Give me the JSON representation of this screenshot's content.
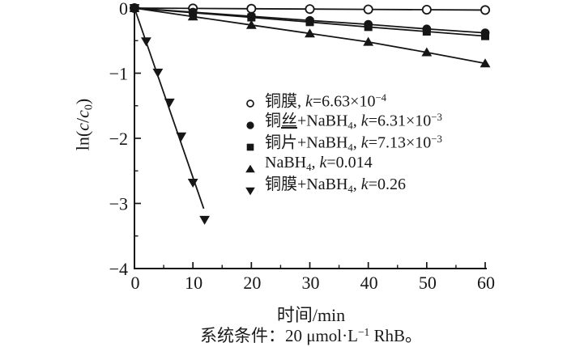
{
  "colors": {
    "ink": "#161616",
    "background": "#ffffff"
  },
  "caption": {
    "segments": [
      {
        "t": "系统条件：20 μmol·L"
      },
      {
        "t": "−1",
        "s": "sup"
      },
      {
        "t": " RhB。"
      }
    ]
  },
  "chart_data": {
    "type": "line",
    "title": "",
    "xlabel": "时间/min",
    "ylabel": "ln(c/c0)",
    "ylabel_segments": [
      {
        "t": "ln("
      },
      {
        "t": "c",
        "s": "i"
      },
      {
        "t": "/"
      },
      {
        "t": "c",
        "s": "i"
      },
      {
        "t": "0",
        "s": "sub"
      },
      {
        "t": ")"
      }
    ],
    "xlim": [
      0,
      60
    ],
    "ylim": [
      -4,
      0
    ],
    "grid": false,
    "x_major_ticks": [
      0,
      10,
      20,
      30,
      40,
      50,
      60
    ],
    "x_minor_ticks": [
      5,
      15,
      25,
      35,
      45,
      55
    ],
    "x_tick_labels": [
      "0",
      "10",
      "20",
      "30",
      "40",
      "50",
      "60"
    ],
    "y_major_ticks": [
      0,
      -1,
      -2,
      -3,
      -4
    ],
    "y_minor_ticks": [
      -0.5,
      -1.5,
      -2.5,
      -3.5
    ],
    "y_tick_labels": [
      "0",
      "−1",
      "−2",
      "−3",
      "−4"
    ],
    "legend_position": "inside-center-right",
    "series": [
      {
        "name": "铜膜",
        "k": "6.63×10⁻⁴",
        "marker": "circle-open",
        "x": [
          0,
          10,
          20,
          30,
          40,
          50,
          60
        ],
        "y": [
          0,
          -0.005,
          -0.01,
          -0.015,
          -0.02,
          -0.025,
          -0.03
        ]
      },
      {
        "name": "铜丝+NaBH₄",
        "k": "6.31×10⁻³",
        "marker": "circle-filled",
        "x": [
          0,
          10,
          20,
          30,
          40,
          50,
          60
        ],
        "y": [
          0,
          -0.063,
          -0.126,
          -0.19,
          -0.25,
          -0.32,
          -0.38
        ]
      },
      {
        "name": "铜片+NaBH₄",
        "k": "7.13×10⁻³",
        "marker": "square-filled",
        "x": [
          0,
          10,
          20,
          30,
          40,
          50,
          60
        ],
        "y": [
          0,
          -0.071,
          -0.143,
          -0.215,
          -0.29,
          -0.36,
          -0.43
        ]
      },
      {
        "name": "NaBH₄",
        "k": "0.014",
        "marker": "triangle-up-filled",
        "x": [
          0,
          10,
          20,
          30,
          40,
          50,
          60
        ],
        "y": [
          0,
          -0.13,
          -0.26,
          -0.39,
          -0.52,
          -0.68,
          -0.85
        ]
      },
      {
        "name": "铜膜+NaBH₄",
        "k": "0.26",
        "marker": "triangle-down-filled",
        "x": [
          0,
          2,
          4,
          6,
          8,
          10,
          12
        ],
        "y": [
          0,
          -0.51,
          -0.99,
          -1.45,
          -1.97,
          -2.68,
          -3.25
        ],
        "fit_line": {
          "x": [
            0,
            11.85
          ],
          "y": [
            0,
            -3.08
          ]
        }
      }
    ]
  },
  "legend": {
    "entries": [
      {
        "marker": "circle-open",
        "segments": [
          {
            "t": "铜膜, "
          },
          {
            "t": "k",
            "s": "i"
          },
          {
            "t": "=6.63×10"
          },
          {
            "t": "−4",
            "s": "sup"
          }
        ]
      },
      {
        "marker": "circle-filled",
        "segments": [
          {
            "t": "铜"
          },
          {
            "t": "丝",
            "s": "u"
          },
          {
            "t": "+NaBH"
          },
          {
            "t": "4",
            "s": "sub"
          },
          {
            "t": ", "
          },
          {
            "t": "k",
            "s": "i"
          },
          {
            "t": "=6.31×10"
          },
          {
            "t": "−3",
            "s": "sup"
          }
        ]
      },
      {
        "marker": "square-filled",
        "segments": [
          {
            "t": "铜片+NaBH"
          },
          {
            "t": "4",
            "s": "sub"
          },
          {
            "t": ", "
          },
          {
            "t": "k",
            "s": "i"
          },
          {
            "t": "=7.13×10"
          },
          {
            "t": "−3",
            "s": "sup"
          }
        ]
      },
      {
        "marker": "triangle-up-filled",
        "segments": [
          {
            "t": "NaBH"
          },
          {
            "t": "4",
            "s": "sub"
          },
          {
            "t": ", "
          },
          {
            "t": "k",
            "s": "i"
          },
          {
            "t": "=0.014"
          }
        ]
      },
      {
        "marker": "triangle-down-filled",
        "segments": [
          {
            "t": "铜膜+NaBH"
          },
          {
            "t": "4",
            "s": "sub"
          },
          {
            "t": ", "
          },
          {
            "t": "k",
            "s": "i"
          },
          {
            "t": "=0.26"
          }
        ]
      }
    ]
  }
}
